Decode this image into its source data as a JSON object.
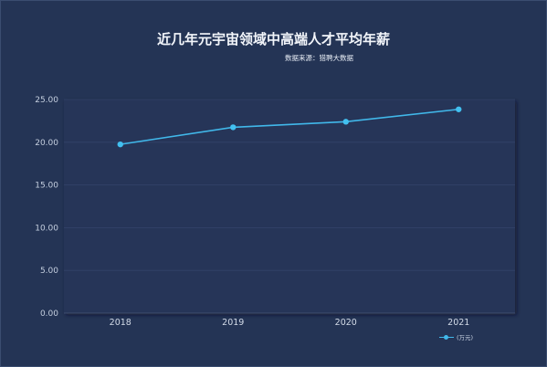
{
  "chart_data": {
    "type": "line",
    "title": "近几年元宇宙领域中高端人才平均年薪",
    "subtitle": "数据来源：猎聘大数据",
    "categories": [
      "2018",
      "2019",
      "2020",
      "2021"
    ],
    "series": [
      {
        "name": "(万元)",
        "values": [
          19.75,
          21.75,
          22.4,
          23.85
        ]
      }
    ],
    "yticks": [
      "0.00",
      "5.00",
      "10.00",
      "15.00",
      "20.00",
      "25.00"
    ],
    "ylim": [
      0,
      25
    ],
    "grid": true,
    "legend": "bottom-right",
    "colors": {
      "background": "#243455",
      "plot": "#263658",
      "line": "#41b8ea",
      "point": "#42c0f0"
    }
  }
}
